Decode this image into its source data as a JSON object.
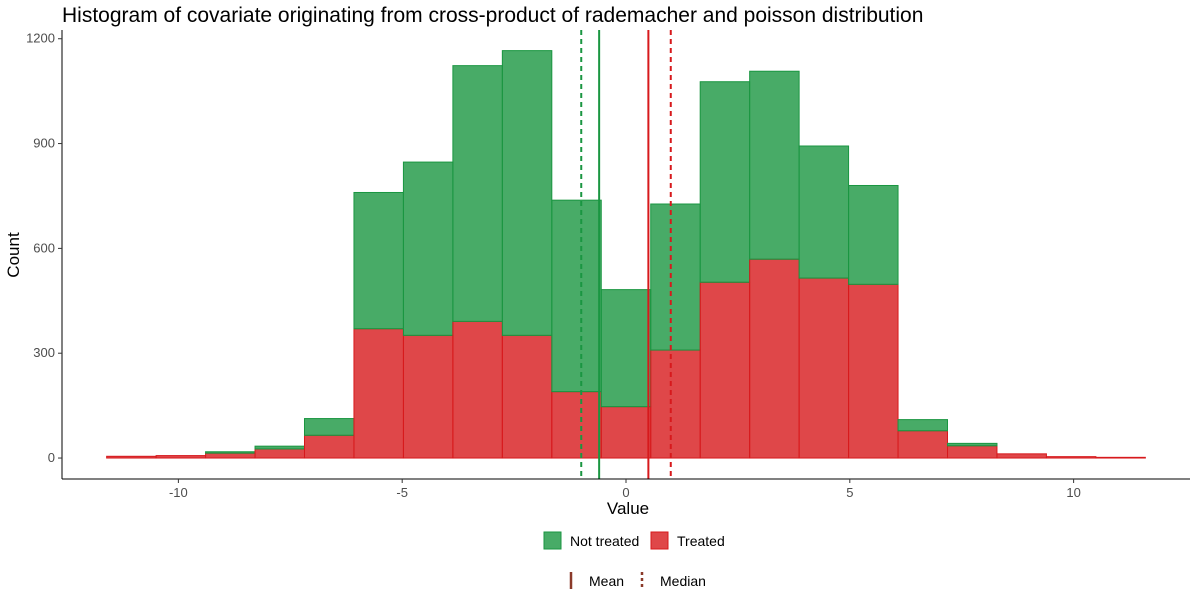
{
  "chart_data": {
    "type": "bar",
    "title": "Histogram of covariate originating from cross-product of rademacher and poisson distribution",
    "xlabel": "Value",
    "ylabel": "Count",
    "xlim": [
      -12.6,
      12.6
    ],
    "ylim": [
      -60,
      1225
    ],
    "x_ticks": [
      -10,
      -5,
      0,
      5,
      10
    ],
    "x_tick_labels": [
      "-10",
      "-5",
      "0",
      "5",
      "10"
    ],
    "y_ticks": [
      0,
      300,
      600,
      900,
      1200
    ],
    "y_tick_labels": [
      "0",
      "300",
      "600",
      "900",
      "1200"
    ],
    "bin_width": 1.105,
    "bin_centers": [
      -11.05,
      -9.945,
      -8.84,
      -7.735,
      -6.63,
      -5.525,
      -4.42,
      -3.315,
      -2.21,
      -1.105,
      0.0,
      1.105,
      2.21,
      3.315,
      4.42,
      5.525,
      6.63,
      7.735,
      8.84,
      9.945,
      11.05
    ],
    "stacking": "stacked",
    "grid": false,
    "legend_position": "bottom",
    "series": [
      {
        "name": "Not treated",
        "color": "#1a9641",
        "values": [
          0,
          0,
          4,
          8,
          48,
          390,
          496,
          732,
          815,
          548,
          335,
          418,
          574,
          538,
          378,
          283,
          32,
          7,
          0,
          0,
          0
        ]
      },
      {
        "name": "Treated",
        "color": "#d7191c",
        "values": [
          5,
          7,
          14,
          26,
          65,
          370,
          351,
          391,
          351,
          190,
          147,
          309,
          503,
          569,
          515,
          497,
          78,
          35,
          12,
          4,
          2
        ]
      }
    ],
    "reference_lines": [
      {
        "group": "Not treated",
        "stat": "Mean",
        "x": -0.6,
        "style": "solid",
        "color": "#1a9641"
      },
      {
        "group": "Not treated",
        "stat": "Median",
        "x": -1.0,
        "style": "dashed",
        "color": "#1a9641"
      },
      {
        "group": "Treated",
        "stat": "Mean",
        "x": 0.5,
        "style": "solid",
        "color": "#d7191c"
      },
      {
        "group": "Treated",
        "stat": "Median",
        "x": 1.0,
        "style": "dashed",
        "color": "#d7191c"
      }
    ],
    "legend_fill": [
      {
        "label": "Not treated",
        "color": "#1a9641"
      },
      {
        "label": "Treated",
        "color": "#d7191c"
      }
    ],
    "legend_lines": [
      {
        "label": "Mean",
        "style": "solid",
        "color": "#8b3a2a"
      },
      {
        "label": "Median",
        "style": "dashed",
        "color": "#8b3a2a"
      }
    ]
  }
}
